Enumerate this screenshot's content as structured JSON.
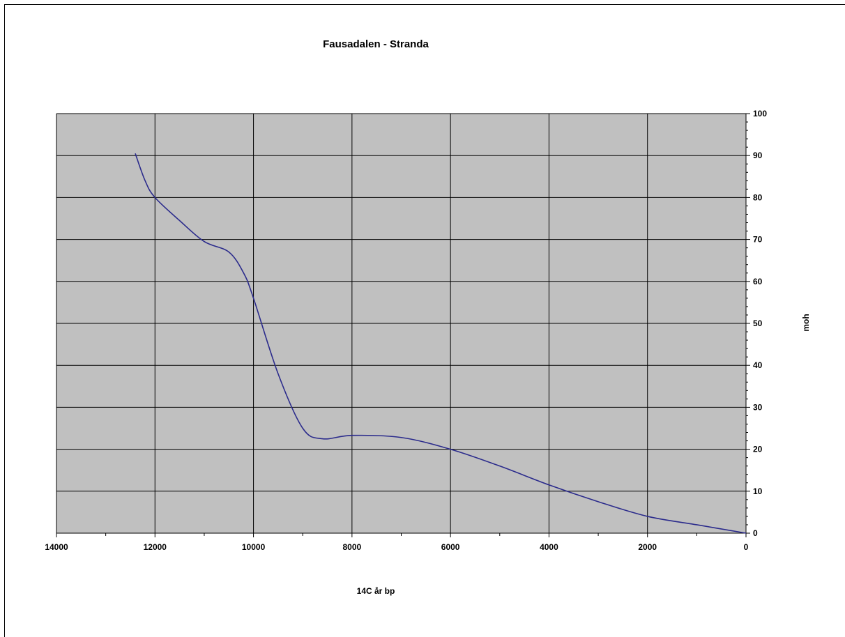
{
  "chart_data": {
    "type": "line",
    "title": "Fausadalen - Stranda",
    "xlabel": "14C år bp",
    "ylabel": "moh",
    "x_reversed": true,
    "xlim": [
      14000,
      0
    ],
    "ylim": [
      0,
      100
    ],
    "x_ticks": [
      14000,
      12000,
      10000,
      8000,
      6000,
      4000,
      2000,
      0
    ],
    "y_ticks": [
      0,
      10,
      20,
      30,
      40,
      50,
      60,
      70,
      80,
      90,
      100
    ],
    "x_tick_labels": [
      "14000",
      "12000",
      "10000",
      "8000",
      "6000",
      "4000",
      "2000",
      "0"
    ],
    "y_tick_labels": [
      "0",
      "10",
      "20",
      "30",
      "40",
      "50",
      "60",
      "70",
      "80",
      "90",
      "100"
    ],
    "y_axis_side": "right",
    "grid": true,
    "plot_background": "#c0c0c0",
    "line_color": "#2b2b8c",
    "series": [
      {
        "x": [
          12400,
          12200,
          12000,
          11500,
          11000,
          10500,
          10200,
          10000,
          9500,
          9000,
          8600,
          8000,
          7000,
          6000,
          5000,
          4000,
          3000,
          2000,
          1000,
          0
        ],
        "y": [
          90.5,
          84,
          80,
          74.5,
          69.5,
          67,
          62,
          56,
          38,
          25,
          22.5,
          23.3,
          22.8,
          20,
          16,
          11.5,
          7.5,
          4,
          2,
          0
        ]
      }
    ]
  }
}
